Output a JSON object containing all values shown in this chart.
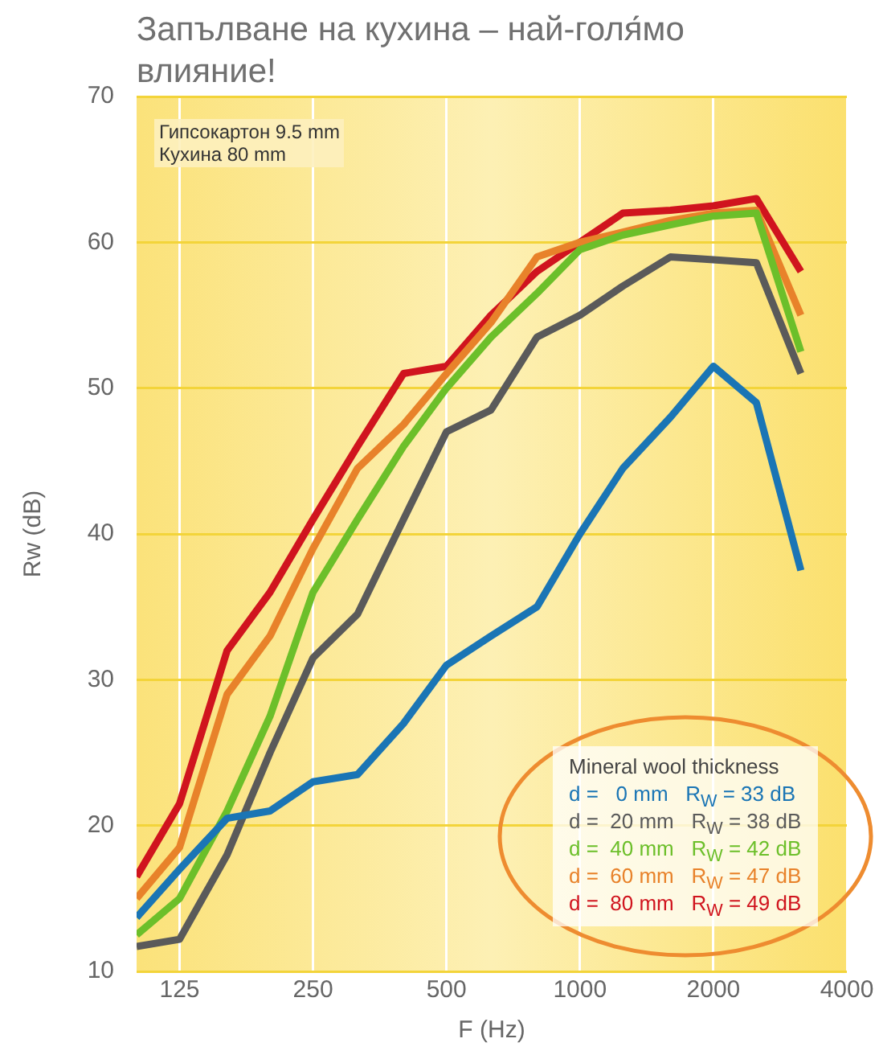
{
  "chart_data": {
    "type": "line",
    "title": "Запълване на кухина – най-голя́мо влияние!",
    "xlabel": "F (Hz)",
    "ylabel": "Rw (dB)",
    "legend_title": "Mineral wool thickness",
    "annotations": [
      "Гипсокартон 9.5 mm",
      "Кухина 80 mm"
    ],
    "x": [
      100,
      125,
      160,
      200,
      250,
      315,
      400,
      500,
      630,
      800,
      1000,
      1250,
      1600,
      2000,
      2500,
      3150
    ],
    "series": [
      {
        "name": "d =   0 mm   R$_{W}$ = 33 dB",
        "color": "#1a75b5",
        "values": [
          13.7,
          17,
          20.5,
          21,
          23,
          23.5,
          27,
          31,
          33,
          35,
          40,
          44.5,
          48,
          51.5,
          49,
          37.5
        ]
      },
      {
        "name": "d =  20 mm   R$_{W}$ = 38 dB",
        "color": "#5a5a5a",
        "values": [
          11.7,
          12.2,
          18,
          25,
          31.5,
          34.5,
          41,
          47,
          48.5,
          53.5,
          55,
          57,
          59,
          58.8,
          58.6,
          51
        ]
      },
      {
        "name": "d =  40 mm   R$_{W}$ = 42 dB",
        "color": "#6cbf2a",
        "values": [
          12.5,
          15,
          21,
          27.5,
          36,
          41,
          46,
          50,
          53.5,
          56.5,
          59.5,
          60.5,
          61.2,
          61.8,
          62,
          52.5
        ]
      },
      {
        "name": "d =  60 mm   R$_{W}$ = 47 dB",
        "color": "#e8822a",
        "values": [
          15,
          18.5,
          29,
          33,
          39,
          44.5,
          47.5,
          51,
          54.5,
          59,
          60,
          60.7,
          61.5,
          62,
          62.2,
          55
        ]
      },
      {
        "name": "d =  80 mm   R$_{W}$ = 49 dB",
        "color": "#d0141e",
        "values": [
          16.5,
          21.5,
          32,
          36,
          41,
          46,
          51,
          51.5,
          55,
          58,
          60,
          62,
          62.2,
          62.5,
          63,
          58
        ]
      }
    ],
    "xlim": [
      100,
      4000
    ],
    "xticks": [
      125,
      250,
      500,
      1000,
      2000,
      4000
    ],
    "ylim": [
      10,
      70
    ],
    "yticks": [
      10,
      20,
      30,
      40,
      50,
      60,
      70
    ],
    "log": "x",
    "grid": true,
    "legend": "bottom right",
    "marker": "none",
    "line_style": "solid"
  }
}
